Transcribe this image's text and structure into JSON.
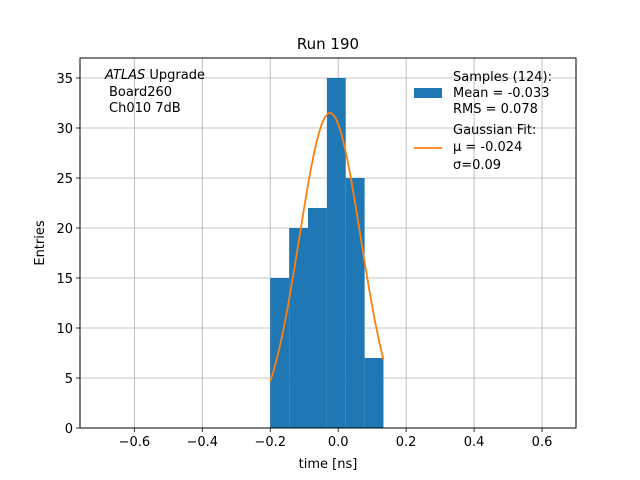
{
  "chart_data": {
    "type": "bar",
    "title": "Run 190",
    "xlabel": "time [ns]",
    "ylabel": "Entries",
    "xlim": [
      -0.76,
      0.7
    ],
    "ylim": [
      0,
      37
    ],
    "xticks": [
      -0.6,
      -0.4,
      -0.2,
      0.0,
      0.2,
      0.4,
      0.6
    ],
    "xtick_labels": [
      "−0.6",
      "−0.4",
      "−0.2",
      "0.0",
      "0.2",
      "0.4",
      "0.6"
    ],
    "yticks": [
      0,
      5,
      10,
      15,
      20,
      25,
      30,
      35
    ],
    "ytick_labels": [
      "0",
      "5",
      "10",
      "15",
      "20",
      "25",
      "30",
      "35"
    ],
    "grid": true,
    "annotation": {
      "italic": "ATLAS",
      "rest": " Upgrade",
      "line2": "Board260",
      "line3": "Ch010 7dB"
    },
    "histogram": {
      "name": "Samples (124):",
      "color": "#1f77b4",
      "bin_edges": [
        -0.2,
        -0.1444,
        -0.0889,
        -0.0333,
        0.0222,
        0.0778,
        0.1333
      ],
      "counts": [
        15,
        20,
        22,
        35,
        25,
        7
      ],
      "stats": {
        "mean": " Mean = -0.033",
        "rms": " RMS = 0.078"
      }
    },
    "fit": {
      "name": "Gaussian Fit:",
      "color": "#ff7f0e",
      "mu_label": " μ = -0.024",
      "sigma_label": " σ=0.09",
      "amplitude": 31.5,
      "mu": -0.024,
      "sigma": 0.09,
      "x_range": [
        -0.2,
        0.1333
      ]
    },
    "legend_placement": "upper right"
  }
}
